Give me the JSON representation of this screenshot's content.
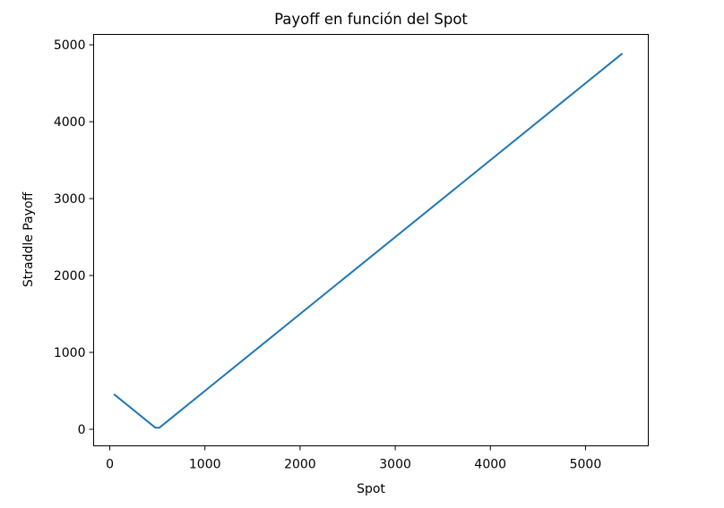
{
  "chart_data": {
    "type": "line",
    "title": "Payoff en función del Spot",
    "xlabel": "Spot",
    "ylabel": "Straddle Payoff",
    "xlim": [
      -170,
      5660
    ],
    "ylim": [
      -215,
      5135
    ],
    "xticks": [
      0,
      1000,
      2000,
      3000,
      4000,
      5000
    ],
    "yticks": [
      0,
      1000,
      2000,
      3000,
      4000,
      5000
    ],
    "grid": false,
    "series": [
      {
        "color": "#1f77b4",
        "x": [
          50,
          480,
          520,
          5380
        ],
        "y": [
          450,
          20,
          20,
          4880
        ]
      }
    ]
  }
}
